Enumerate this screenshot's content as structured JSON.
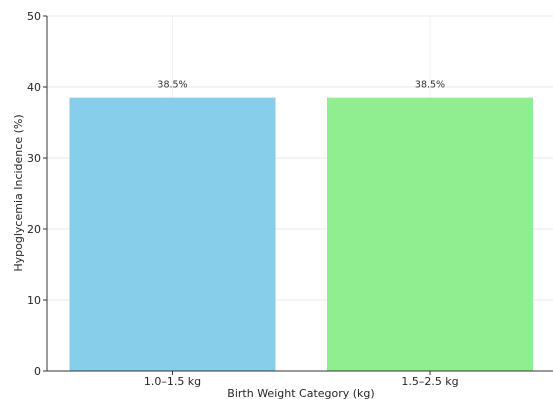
{
  "chart_data": {
    "type": "bar",
    "categories": [
      "1.0–1.5 kg",
      "1.5–2.5 kg"
    ],
    "values": [
      38.5,
      38.5
    ],
    "data_labels": [
      "38.5%",
      "38.5%"
    ],
    "xlabel": "Birth Weight Category (kg)",
    "ylabel": "Hypoglycemia Incidence (%)",
    "ylim": [
      0,
      50
    ],
    "yticks": [
      0,
      10,
      20,
      30,
      40,
      50
    ],
    "grid": true,
    "colors": [
      "#87ceeb",
      "#90ee90"
    ]
  }
}
